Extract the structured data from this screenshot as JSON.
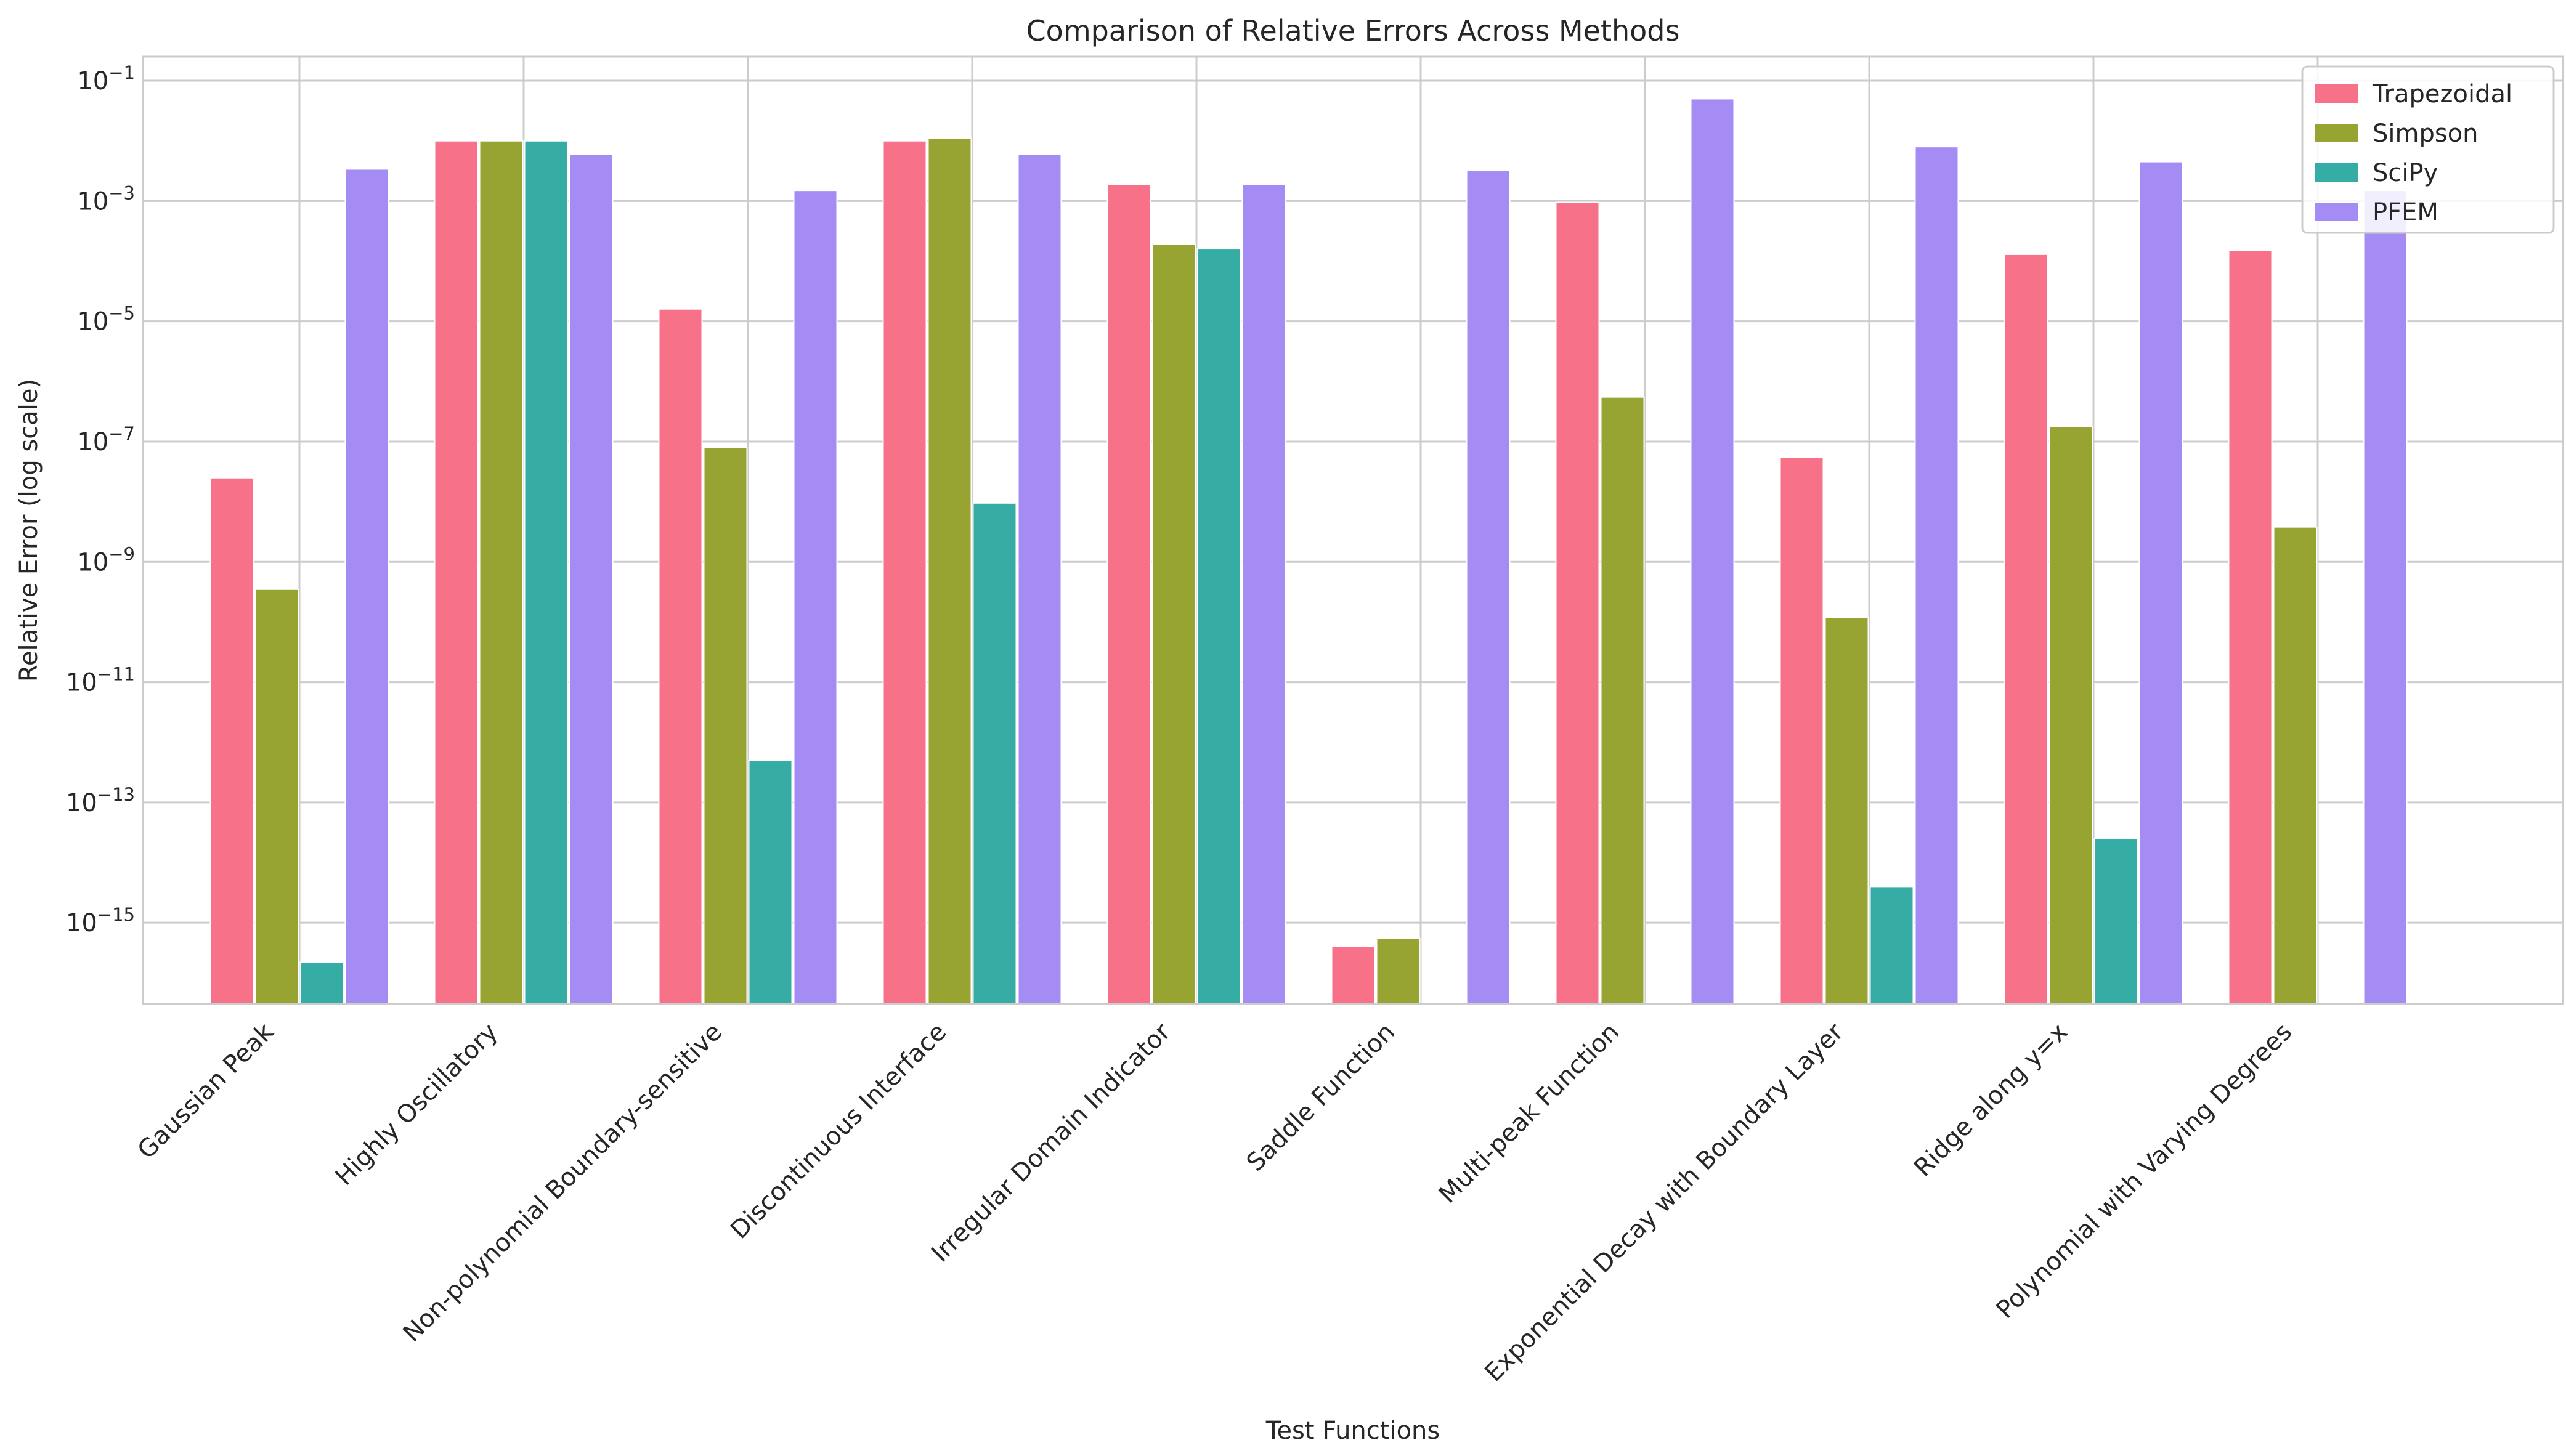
{
  "chart_data": {
    "type": "bar",
    "title": "Comparison of Relative Errors Across Methods",
    "xlabel": "Test Functions",
    "ylabel": "Relative Error (log scale)",
    "yscale": "log",
    "ylim_log10": [
      -16.35,
      -0.6
    ],
    "yticks": [
      {
        "exp": -15,
        "base": "10",
        "sup": "−15"
      },
      {
        "exp": -13,
        "base": "10",
        "sup": "−13"
      },
      {
        "exp": -11,
        "base": "10",
        "sup": "−11"
      },
      {
        "exp": -9,
        "base": "10",
        "sup": "−9"
      },
      {
        "exp": -7,
        "base": "10",
        "sup": "−7"
      },
      {
        "exp": -5,
        "base": "10",
        "sup": "−5"
      },
      {
        "exp": -3,
        "base": "10",
        "sup": "−3"
      },
      {
        "exp": -1,
        "base": "10",
        "sup": "−1"
      }
    ],
    "grid": true,
    "legend_position": "top-right",
    "categories": [
      "Gaussian Peak",
      "Highly Oscillatory",
      "Non-polynomial Boundary-sensitive",
      "Discontinuous Interface",
      "Irregular Domain Indicator",
      "Saddle Function",
      "Multi-peak Function",
      "Exponential Decay with Boundary Layer",
      "Ridge along y=x",
      "Polynomial with Varying Degrees"
    ],
    "series": [
      {
        "name": "Trapezoidal",
        "color": "#f77189",
        "values": [
          2.5e-08,
          0.01,
          1.6e-05,
          0.01,
          0.0019,
          4e-16,
          0.00095,
          5.5e-08,
          0.00013,
          0.00015
        ]
      },
      {
        "name": "Simpson",
        "color": "#97a431",
        "values": [
          3.5e-10,
          0.01,
          8e-08,
          0.011,
          0.00019,
          5.5e-16,
          5.5e-07,
          1.2e-10,
          1.8e-07,
          3.8e-09
        ]
      },
      {
        "name": "SciPy",
        "color": "#36ada4",
        "values": [
          2.2e-16,
          0.01,
          5e-13,
          9.5e-09,
          0.00016,
          null,
          null,
          4e-15,
          2.5e-14,
          null
        ]
      },
      {
        "name": "PFEM",
        "color": "#a48cf4",
        "values": [
          0.0034,
          0.006,
          0.0015,
          0.006,
          0.0019,
          0.0032,
          0.05,
          0.008,
          0.0045,
          0.0015
        ]
      }
    ]
  }
}
